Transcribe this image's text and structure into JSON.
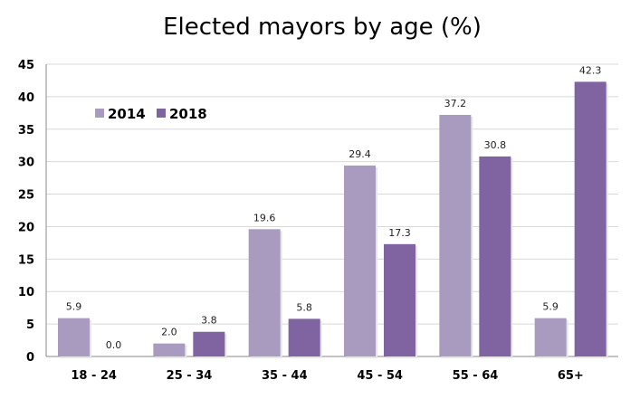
{
  "chart_data": {
    "type": "bar",
    "title": "Elected mayors by age (%)",
    "xlabel": "",
    "ylabel": "",
    "ylim": [
      0,
      45
    ],
    "yticks": [
      0,
      5,
      10,
      15,
      20,
      25,
      30,
      35,
      40,
      45
    ],
    "grid": true,
    "legend_position": "top-left",
    "categories": [
      "18 - 24",
      "25 - 34",
      "35 - 44",
      "45 - 54",
      "55 - 64",
      "65+"
    ],
    "series": [
      {
        "name": "2014",
        "color": "#A99BC0",
        "values": [
          5.9,
          2.0,
          19.6,
          29.4,
          37.2,
          5.9
        ]
      },
      {
        "name": "2018",
        "color": "#8064A2",
        "values": [
          0.0,
          3.8,
          5.8,
          17.3,
          30.8,
          42.3
        ]
      }
    ]
  }
}
